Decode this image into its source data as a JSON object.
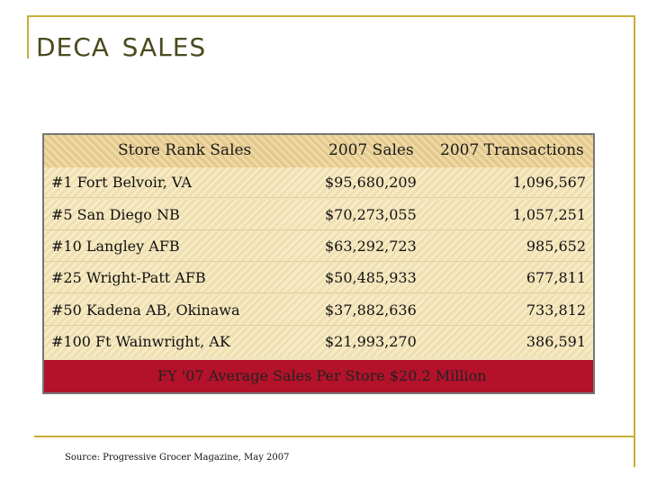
{
  "title": "DECA Sales",
  "table": {
    "headers": {
      "store": "Store Rank Sales",
      "sales": "2007 Sales",
      "transactions": "2007 Transactions"
    },
    "rows": [
      {
        "store": "#1 Fort Belvoir, VA",
        "sales": "$95,680,209",
        "transactions": "1,096,567"
      },
      {
        "store": "#5 San Diego NB",
        "sales": "$70,273,055",
        "transactions": "1,057,251"
      },
      {
        "store": "#10 Langley AFB",
        "sales": "$63,292,723",
        "transactions": "985,652"
      },
      {
        "store": "#25 Wright-Patt AFB",
        "sales": "$50,485,933",
        "transactions": "677,811"
      },
      {
        "store": "#50 Kadena AB, Okinawa",
        "sales": "$37,882,636",
        "transactions": "733,812"
      },
      {
        "store": "#100 Ft Wainwright, AK",
        "sales": "$21,993,270",
        "transactions": "386,591"
      }
    ],
    "footer": "FY '07 Average Sales Per Store $20.2 Million"
  },
  "source": "Source: Progressive Grocer Magazine, May 2007",
  "colors": {
    "frame": "#c8ad3a",
    "footer_bar": "#b3122a",
    "title": "#4a4a1e"
  }
}
